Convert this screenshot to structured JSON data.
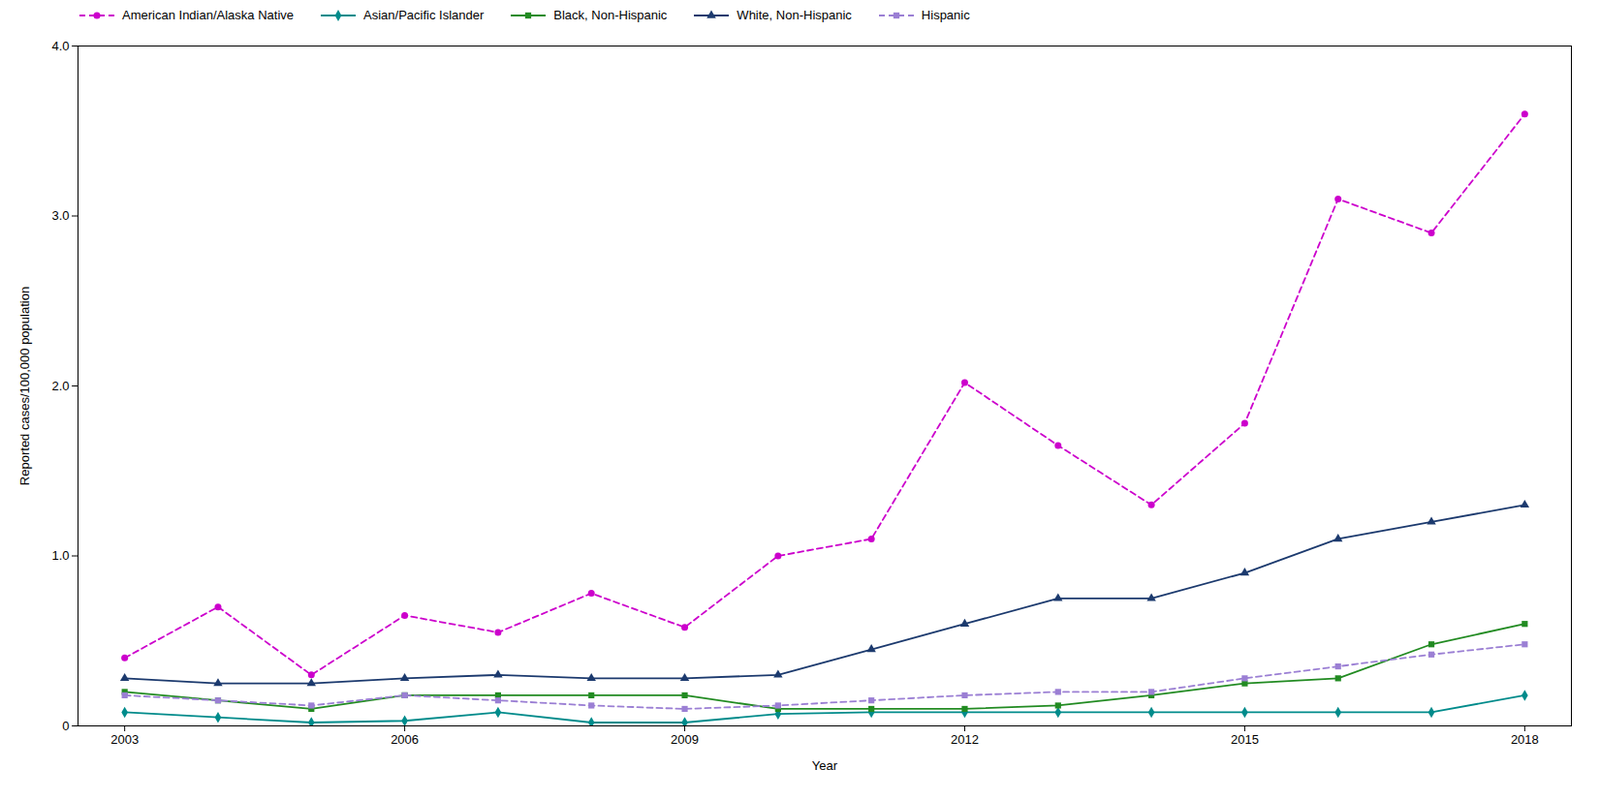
{
  "chart_data": {
    "type": "line",
    "x": [
      2003,
      2004,
      2005,
      2006,
      2007,
      2008,
      2009,
      2010,
      2011,
      2012,
      2013,
      2014,
      2015,
      2016,
      2017,
      2018
    ],
    "series": [
      {
        "name": "American Indian/Alaska Native",
        "color": "#CC00CC",
        "marker": "circle",
        "line_style": "dashed",
        "values": [
          0.4,
          0.7,
          0.3,
          0.65,
          0.55,
          0.78,
          0.58,
          1.0,
          1.1,
          2.02,
          1.65,
          1.3,
          1.78,
          3.1,
          2.9,
          3.6
        ]
      },
      {
        "name": "Asian/Pacific Islander",
        "color": "#008B8B",
        "marker": "diamond",
        "line_style": "solid",
        "values": [
          0.08,
          0.05,
          0.02,
          0.03,
          0.08,
          0.02,
          0.02,
          0.07,
          0.08,
          0.08,
          0.08,
          0.08,
          0.08,
          0.08,
          0.08,
          0.18
        ]
      },
      {
        "name": "Black, Non-Hispanic",
        "color": "#228B22",
        "marker": "square",
        "line_style": "solid",
        "values": [
          0.2,
          0.15,
          0.1,
          0.18,
          0.18,
          0.18,
          0.18,
          0.1,
          0.1,
          0.1,
          0.12,
          0.18,
          0.25,
          0.28,
          0.48,
          0.6
        ]
      },
      {
        "name": "White, Non-Hispanic",
        "color": "#1C3A6E",
        "marker": "triangle",
        "line_style": "solid",
        "values": [
          0.28,
          0.25,
          0.25,
          0.28,
          0.3,
          0.28,
          0.28,
          0.3,
          0.45,
          0.6,
          0.75,
          0.75,
          0.9,
          1.1,
          1.2,
          1.3
        ]
      },
      {
        "name": "Hispanic",
        "color": "#9B7FD4",
        "marker": "square",
        "line_style": "dashed",
        "values": [
          0.18,
          0.15,
          0.12,
          0.18,
          0.15,
          0.12,
          0.1,
          0.12,
          0.15,
          0.18,
          0.2,
          0.2,
          0.28,
          0.35,
          0.42,
          0.48
        ]
      }
    ],
    "xlabel": "Year",
    "ylabel": "Reported cases/100,000 population",
    "xlim": [
      2002.5,
      2018.5
    ],
    "xticks": [
      2003,
      2006,
      2009,
      2012,
      2015,
      2018
    ],
    "ylim": [
      0,
      4
    ],
    "yticks": [
      0,
      {
        "value": 1,
        "label": "1.0"
      },
      {
        "value": 2,
        "label": "2.0"
      },
      {
        "value": 3,
        "label": "3.0"
      },
      {
        "value": 4,
        "label": "4.0"
      }
    ],
    "legend": "upper left",
    "grid": false
  }
}
